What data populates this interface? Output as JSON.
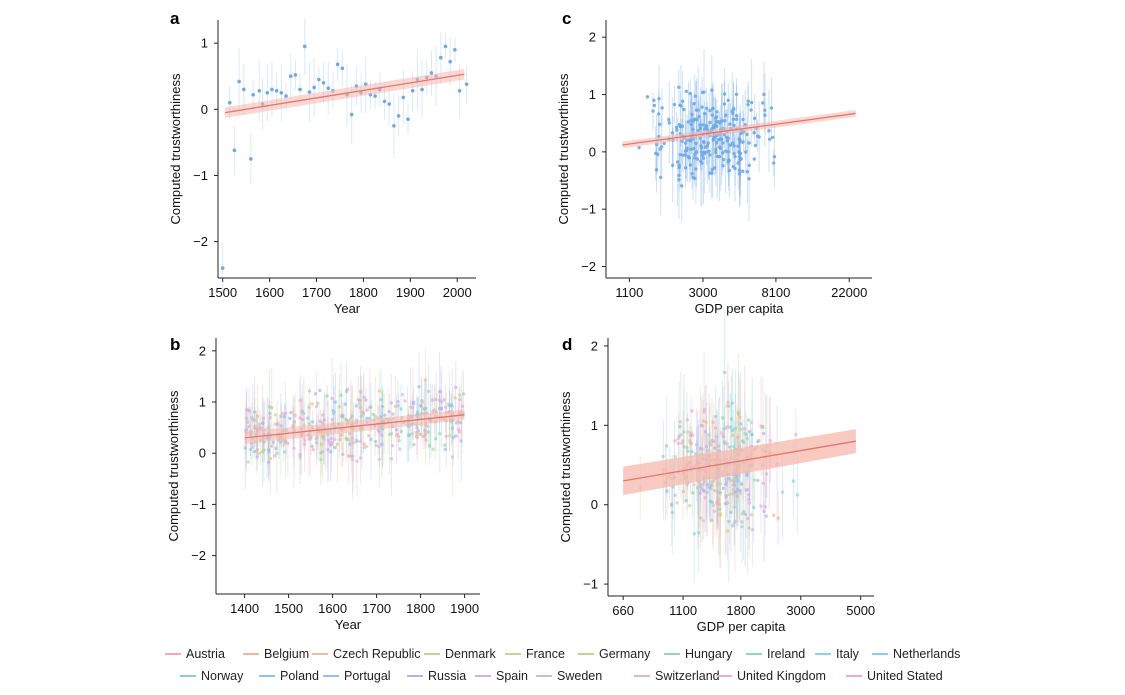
{
  "colors": {
    "blue": "#6fa8e6",
    "trend": "#e5776a",
    "band": "#f6b8ae",
    "axis": "#222222"
  },
  "chart_data": [
    {
      "panel": "a",
      "type": "scatter",
      "xlabel": "Year",
      "ylabel": "Computed trustworthiness",
      "xlim": [
        1490,
        2040
      ],
      "ylim": [
        -2.55,
        1.35
      ],
      "xticks": [
        1500,
        1600,
        1700,
        1800,
        1900,
        2000
      ],
      "yticks": [
        -2,
        -1,
        0,
        1
      ],
      "points": [
        [
          1500,
          -2.4
        ],
        [
          1515,
          0.1
        ],
        [
          1525,
          -0.62
        ],
        [
          1535,
          0.42
        ],
        [
          1545,
          0.3
        ],
        [
          1560,
          -0.75
        ],
        [
          1565,
          0.22
        ],
        [
          1578,
          0.28
        ],
        [
          1585,
          0.08
        ],
        [
          1595,
          0.25
        ],
        [
          1605,
          0.3
        ],
        [
          1615,
          0.28
        ],
        [
          1625,
          0.25
        ],
        [
          1635,
          0.2
        ],
        [
          1645,
          0.5
        ],
        [
          1655,
          0.52
        ],
        [
          1665,
          0.3
        ],
        [
          1675,
          0.95
        ],
        [
          1685,
          0.26
        ],
        [
          1695,
          0.33
        ],
        [
          1705,
          0.45
        ],
        [
          1715,
          0.4
        ],
        [
          1725,
          0.32
        ],
        [
          1735,
          0.28
        ],
        [
          1745,
          0.68
        ],
        [
          1755,
          0.62
        ],
        [
          1765,
          0.22
        ],
        [
          1775,
          -0.08
        ],
        [
          1785,
          0.35
        ],
        [
          1795,
          0.25
        ],
        [
          1805,
          0.38
        ],
        [
          1815,
          0.22
        ],
        [
          1825,
          0.2
        ],
        [
          1835,
          0.3
        ],
        [
          1845,
          0.12
        ],
        [
          1855,
          0.08
        ],
        [
          1865,
          -0.25
        ],
        [
          1875,
          -0.1
        ],
        [
          1885,
          0.18
        ],
        [
          1895,
          -0.15
        ],
        [
          1905,
          0.28
        ],
        [
          1915,
          0.45
        ],
        [
          1925,
          0.3
        ],
        [
          1935,
          0.48
        ],
        [
          1945,
          0.55
        ],
        [
          1955,
          0.5
        ],
        [
          1965,
          0.78
        ],
        [
          1975,
          0.95
        ],
        [
          1985,
          0.72
        ],
        [
          1995,
          0.9
        ],
        [
          2005,
          0.28
        ],
        [
          2020,
          0.38
        ]
      ],
      "trend": {
        "x": [
          1505,
          2015
        ],
        "y": [
          -0.05,
          0.53
        ],
        "band_start": 0.08,
        "band_end": 0.08
      }
    },
    {
      "panel": "b",
      "type": "scatter",
      "xlabel": "Year",
      "ylabel": "Computed trustworthiness",
      "xlim": [
        1335,
        1935
      ],
      "ylim": [
        -2.75,
        2.25
      ],
      "xticks": [
        1400,
        1500,
        1600,
        1700,
        1800,
        1900
      ],
      "yticks": [
        -2,
        -1,
        0,
        1,
        2
      ],
      "series_note": "multi-country points",
      "trend": {
        "x": [
          1400,
          1900
        ],
        "y": [
          0.3,
          0.75
        ],
        "band_start": 0.12,
        "band_end": 0.1
      }
    },
    {
      "panel": "c",
      "type": "scatter",
      "xlabel": "GDP per capita",
      "ylabel": "Computed trustworthiness",
      "xscale": "log",
      "xlim": [
        800,
        30000
      ],
      "ylim": [
        -2.2,
        2.3
      ],
      "xticks": [
        1100,
        3000,
        8100,
        22000
      ],
      "yticks": [
        -2,
        -1,
        0,
        1,
        2
      ],
      "trend": {
        "x": [
          1000,
          24000
        ],
        "y": [
          0.12,
          0.67
        ],
        "band_start": 0.06,
        "band_end": 0.06
      }
    },
    {
      "panel": "d",
      "type": "scatter",
      "xlabel": "GDP per capita",
      "ylabel": "Computed trustworthiness",
      "xscale": "log",
      "xlim": [
        580,
        5600
      ],
      "ylim": [
        -1.15,
        2.1
      ],
      "xticks": [
        660,
        1100,
        1800,
        3000,
        5000
      ],
      "yticks": [
        -1,
        0,
        1,
        2
      ],
      "trend": {
        "x": [
          660,
          4800
        ],
        "y": [
          0.3,
          0.8
        ],
        "band_start": 0.18,
        "band_end": 0.15
      }
    }
  ],
  "panel_labels": [
    "a",
    "b",
    "c",
    "d"
  ],
  "legend": [
    {
      "name": "Austria",
      "color": "#f4a9b8"
    },
    {
      "name": "Belgium",
      "color": "#f4b49c"
    },
    {
      "name": "Czech Republic",
      "color": "#e8c29a"
    },
    {
      "name": "Denmark",
      "color": "#d8c98a"
    },
    {
      "name": "France",
      "color": "#cdd38a"
    },
    {
      "name": "Germany",
      "color": "#b9d88e"
    },
    {
      "name": "Hungary",
      "color": "#9ad8a4"
    },
    {
      "name": "Ireland",
      "color": "#8fd8c6"
    },
    {
      "name": "Italy",
      "color": "#8dd6d8"
    },
    {
      "name": "Netherlands",
      "color": "#8ccfe2"
    },
    {
      "name": "Norway",
      "color": "#8cc8ea"
    },
    {
      "name": "Poland",
      "color": "#90c0ee"
    },
    {
      "name": "Portugal",
      "color": "#9bbaee"
    },
    {
      "name": "Russia",
      "color": "#b1b2ee"
    },
    {
      "name": "Spain",
      "color": "#c9b0ec"
    },
    {
      "name": "Sweden",
      "color": "#ddb0e4"
    },
    {
      "name": "Switzerland",
      "color": "#eaaedc"
    },
    {
      "name": "United Kingdom",
      "color": "#f0abd0"
    },
    {
      "name": "United Stated",
      "color": "#f2aac2"
    }
  ]
}
